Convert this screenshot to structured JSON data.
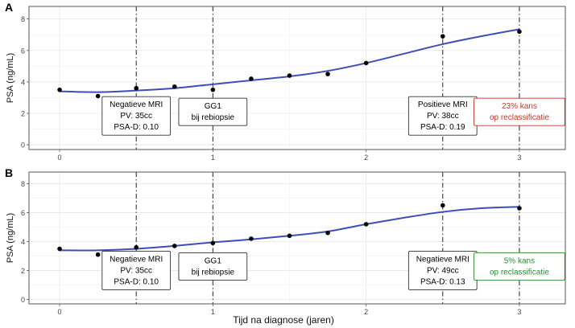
{
  "figure": {
    "xlabel": "Tijd na diagnose (jaren)"
  },
  "colors": {
    "fit_line": "#3d4fb5",
    "marker": "#000000",
    "annotation_red": "#c0392b",
    "annotation_green": "#2e8b3a",
    "panel_border": "#555555",
    "grid": "#e6e6e6"
  },
  "chart_data": [
    {
      "panel": "A",
      "type": "line",
      "ylabel": "PSA (ng/mL)",
      "xlim": [
        -0.2,
        3.3
      ],
      "ylim": [
        -0.3,
        8.8
      ],
      "xticks": [
        0,
        1,
        2,
        3
      ],
      "yticks": [
        0,
        2,
        4,
        6,
        8
      ],
      "grid": true,
      "series": [
        {
          "kind": "scatter",
          "points": [
            [
              0,
              3.5
            ],
            [
              0.25,
              3.1
            ],
            [
              0.5,
              3.6
            ],
            [
              0.75,
              3.7
            ],
            [
              1.0,
              3.5
            ],
            [
              1.25,
              4.2
            ],
            [
              1.5,
              4.4
            ],
            [
              1.75,
              4.5
            ],
            [
              2.0,
              5.2
            ],
            [
              2.5,
              6.9
            ],
            [
              3.0,
              7.2
            ]
          ]
        },
        {
          "kind": "fit",
          "points": [
            [
              0,
              3.4
            ],
            [
              0.25,
              3.35
            ],
            [
              0.5,
              3.45
            ],
            [
              0.75,
              3.6
            ],
            [
              1.0,
              3.85
            ],
            [
              1.25,
              4.1
            ],
            [
              1.5,
              4.35
            ],
            [
              1.75,
              4.7
            ],
            [
              2.0,
              5.2
            ],
            [
              2.25,
              5.8
            ],
            [
              2.5,
              6.4
            ],
            [
              2.75,
              6.9
            ],
            [
              3.0,
              7.35
            ]
          ]
        }
      ],
      "vlines": [
        0.5,
        1.0,
        2.5,
        3.0
      ],
      "annotations": [
        {
          "x": 0.5,
          "lines": [
            "Negatieve MRI",
            "PV: 35cc",
            "PSA-D: 0.10"
          ],
          "color": "#000000"
        },
        {
          "x": 1.0,
          "lines": [
            "GG1",
            "bij rebiopsie"
          ],
          "color": "#000000"
        },
        {
          "x": 2.5,
          "lines": [
            "Positieve MRI",
            "PV: 38cc",
            "PSA-D: 0.19"
          ],
          "color": "#000000"
        },
        {
          "x": 3.0,
          "lines": [
            "23% kans",
            "op reclassificatie"
          ],
          "color": "#c0392b"
        }
      ]
    },
    {
      "panel": "B",
      "type": "line",
      "ylabel": "PSA (ng/mL)",
      "xlim": [
        -0.2,
        3.3
      ],
      "ylim": [
        -0.3,
        8.8
      ],
      "xticks": [
        0,
        1,
        2,
        3
      ],
      "yticks": [
        0,
        2,
        4,
        6,
        8
      ],
      "grid": true,
      "series": [
        {
          "kind": "scatter",
          "points": [
            [
              0,
              3.5
            ],
            [
              0.25,
              3.1
            ],
            [
              0.5,
              3.6
            ],
            [
              0.75,
              3.7
            ],
            [
              1.0,
              3.9
            ],
            [
              1.25,
              4.2
            ],
            [
              1.5,
              4.4
            ],
            [
              1.75,
              4.6
            ],
            [
              2.0,
              5.2
            ],
            [
              2.5,
              6.5
            ],
            [
              3.0,
              6.3
            ]
          ]
        },
        {
          "kind": "fit",
          "points": [
            [
              0,
              3.4
            ],
            [
              0.25,
              3.4
            ],
            [
              0.5,
              3.5
            ],
            [
              0.75,
              3.7
            ],
            [
              1.0,
              3.95
            ],
            [
              1.25,
              4.15
            ],
            [
              1.5,
              4.4
            ],
            [
              1.75,
              4.7
            ],
            [
              2.0,
              5.2
            ],
            [
              2.25,
              5.65
            ],
            [
              2.5,
              6.05
            ],
            [
              2.75,
              6.3
            ],
            [
              3.0,
              6.4
            ]
          ]
        }
      ],
      "vlines": [
        0.5,
        1.0,
        2.5,
        3.0
      ],
      "annotations": [
        {
          "x": 0.5,
          "lines": [
            "Negatieve MRI",
            "PV: 35cc",
            "PSA-D: 0.10"
          ],
          "color": "#000000"
        },
        {
          "x": 1.0,
          "lines": [
            "GG1",
            "bij rebiopsie"
          ],
          "color": "#000000"
        },
        {
          "x": 2.5,
          "lines": [
            "Negatieve MRI",
            "PV: 49cc",
            "PSA-D: 0.13"
          ],
          "color": "#000000"
        },
        {
          "x": 3.0,
          "lines": [
            "5% kans",
            "op reclassificatie"
          ],
          "color": "#2e8b3a"
        }
      ]
    }
  ]
}
